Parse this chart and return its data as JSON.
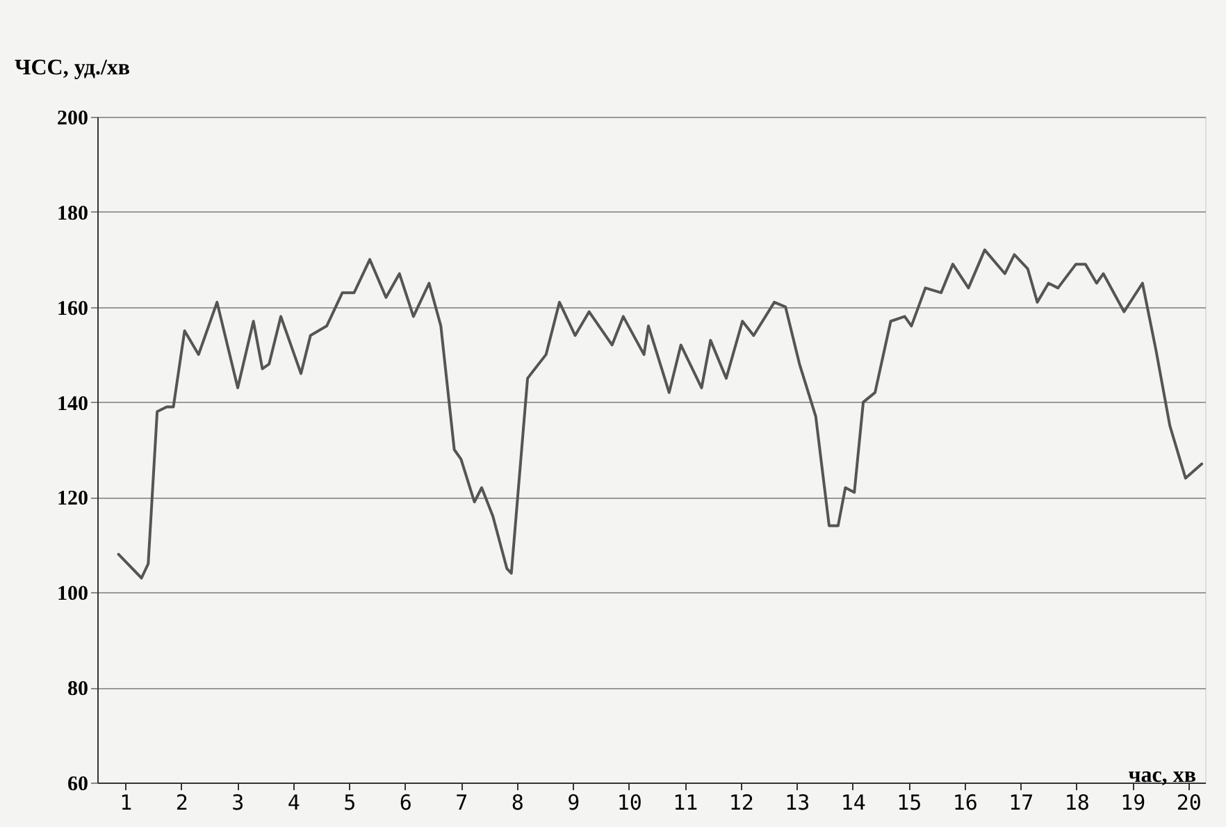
{
  "chart_data": {
    "type": "line",
    "ylabel": "ЧСС, уд./хв",
    "xlabel": "час, хв",
    "x": [
      0.88,
      1.29,
      1.41,
      1.57,
      1.74,
      1.86,
      2.06,
      2.31,
      2.64,
      3.01,
      3.29,
      3.45,
      3.57,
      3.78,
      4.14,
      4.31,
      4.6,
      4.88,
      5.09,
      5.37,
      5.66,
      5.9,
      6.15,
      6.43,
      6.64,
      6.88,
      7.0,
      7.24,
      7.37,
      7.57,
      7.82,
      7.9,
      8.19,
      8.52,
      8.76,
      9.04,
      9.29,
      9.7,
      9.9,
      10.27,
      10.35,
      10.72,
      10.93,
      11.3,
      11.46,
      11.74,
      12.03,
      12.23,
      12.6,
      12.8,
      13.05,
      13.34,
      13.58,
      13.74,
      13.87,
      14.03,
      14.19,
      14.4,
      14.68,
      14.93,
      15.05,
      15.3,
      15.58,
      15.79,
      16.07,
      16.36,
      16.72,
      16.89,
      17.13,
      17.3,
      17.5,
      17.67,
      17.99,
      18.16,
      18.36,
      18.48,
      18.85,
      19.18,
      19.42,
      19.67,
      19.95,
      20.24
    ],
    "series": [
      {
        "color": "#555555",
        "values": [
          108,
          103,
          106,
          138,
          139,
          139,
          155,
          150,
          161,
          143,
          157,
          147,
          148,
          158,
          146,
          154,
          156,
          163,
          163,
          170,
          162,
          167,
          158,
          165,
          156,
          130,
          128,
          119,
          122,
          116,
          105,
          104,
          145,
          150,
          161,
          154,
          159,
          152,
          158,
          150,
          156,
          142,
          152,
          143,
          153,
          145,
          157,
          154,
          161,
          160,
          148,
          137,
          114,
          114,
          122,
          121,
          140,
          142,
          157,
          158,
          156,
          164,
          163,
          169,
          164,
          172,
          167,
          171,
          168,
          161,
          165,
          164,
          169,
          169,
          165,
          167,
          159,
          165,
          151,
          135,
          124,
          127
        ]
      }
    ],
    "xlim": [
      0.5,
      20.3
    ],
    "xticks": [
      1,
      2,
      3,
      4,
      5,
      6,
      7,
      8,
      9,
      10,
      11,
      12,
      13,
      14,
      15,
      16,
      17,
      18,
      19,
      20
    ],
    "ylim": [
      60,
      200
    ],
    "yticks": [
      60,
      80,
      100,
      120,
      140,
      160,
      180,
      200
    ],
    "grid": "y",
    "marker": "none",
    "line_style": "solid"
  }
}
